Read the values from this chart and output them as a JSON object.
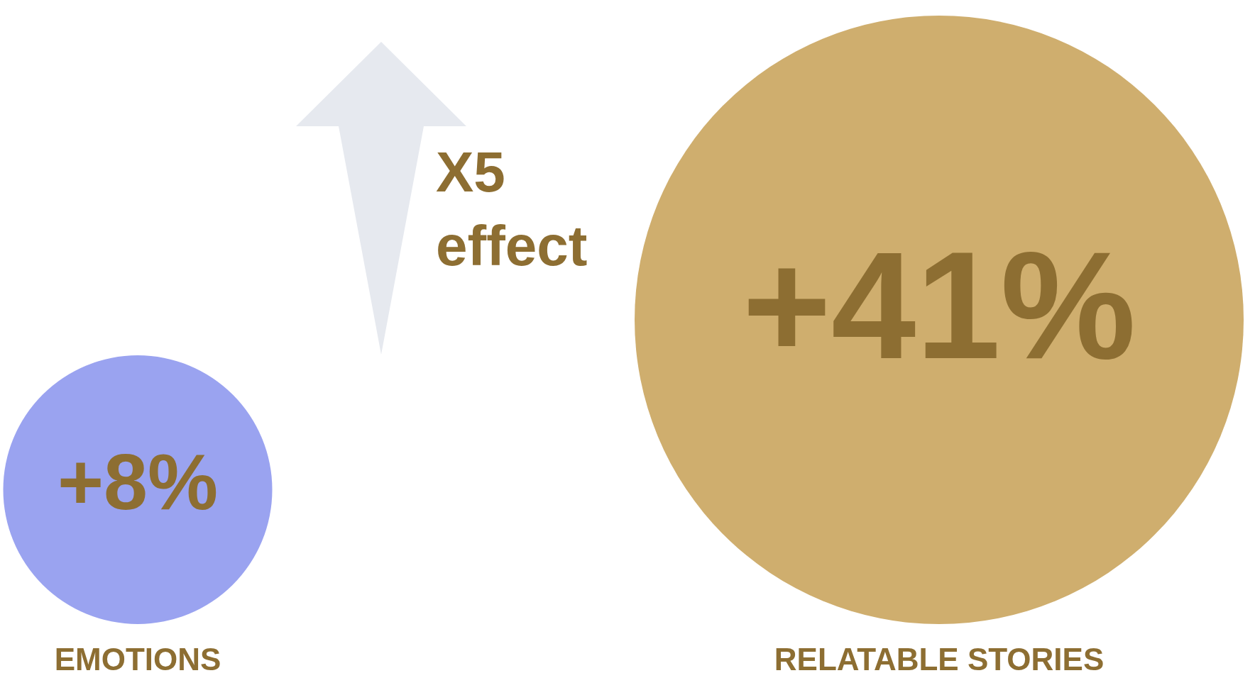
{
  "chart_data": {
    "type": "other",
    "categories": [
      "EMOTIONS",
      "RELATABLE STORIES"
    ],
    "values": [
      8,
      41
    ],
    "value_labels": [
      "+8%",
      "+41%"
    ],
    "colors": [
      "#9aa3f0",
      "#cfae6e"
    ],
    "annotations": [
      "X5\neffect"
    ]
  }
}
